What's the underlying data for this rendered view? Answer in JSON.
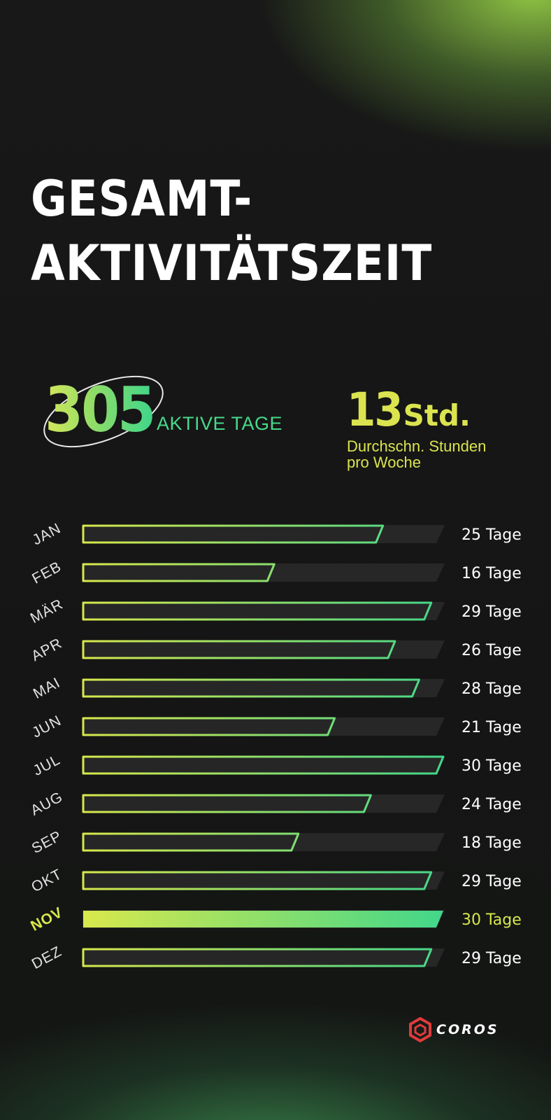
{
  "title": {
    "line1": "GESAMT-",
    "line2": "AKTIVITÄTSZEIT"
  },
  "stats": {
    "active_days": {
      "value": "305",
      "label": "AKTIVE TAGE"
    },
    "avg_hours": {
      "value": "13",
      "unit": "Std.",
      "description_line1": "Durchschn. Stunden",
      "description_line2": "pro Woche"
    }
  },
  "chart_data": {
    "type": "bar",
    "orientation": "horizontal",
    "categories": [
      "JAN",
      "FEB",
      "MÄR",
      "APR",
      "MAI",
      "JUN",
      "JUL",
      "AUG",
      "SEP",
      "OKT",
      "NOV",
      "DEZ"
    ],
    "values": [
      25,
      16,
      29,
      26,
      28,
      21,
      30,
      24,
      18,
      29,
      30,
      29
    ],
    "value_labels": [
      "25 Tage",
      "16 Tage",
      "29 Tage",
      "26 Tage",
      "28 Tage",
      "21 Tage",
      "30 Tage",
      "24 Tage",
      "18 Tage",
      "29 Tage",
      "30 Tage",
      "29 Tage"
    ],
    "highlighted_category": "NOV",
    "xlim": [
      0,
      30
    ],
    "grid": false,
    "colors": {
      "start": "#d8e84c",
      "end": "#3ed68c",
      "track": "#2a2a2a",
      "label": "#e2e2e2",
      "value_label": "#ffffff",
      "highlight_label": "#d8e84c"
    }
  },
  "brand": {
    "logo_text": "COROS",
    "logo_color": "#e23a3a",
    "icon": "hexagon-logo-icon"
  }
}
